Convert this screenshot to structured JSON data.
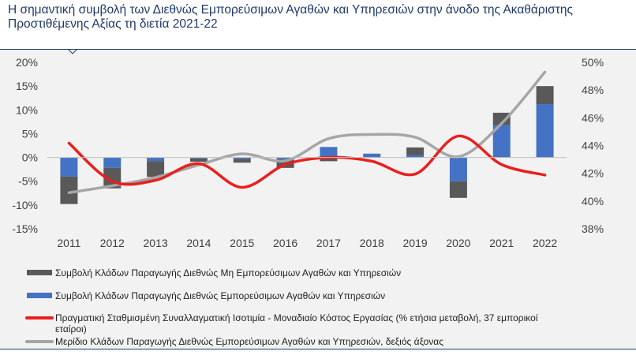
{
  "title": "Η σημαντική συμβολή των Διεθνώς Εμπορεύσιμων Αγαθών και Υπηρεσιών στην άνοδο της Ακαθάριστης Προστιθέμενης Αξίας τη διετία 2021-22",
  "chart_data": {
    "type": "bar",
    "categories": [
      "2011",
      "2012",
      "2013",
      "2014",
      "2015",
      "2016",
      "2017",
      "2018",
      "2019",
      "2020",
      "2021",
      "2022"
    ],
    "left_axis": {
      "ylim": [
        -15,
        20
      ],
      "ticks": [
        -15,
        -10,
        -5,
        0,
        5,
        10,
        15,
        20
      ],
      "tick_labels": [
        "-15%",
        "-10%",
        "-5%",
        "0%",
        "5%",
        "10%",
        "15%",
        "20%"
      ]
    },
    "right_axis": {
      "ylim": [
        38,
        50
      ],
      "ticks": [
        38,
        40,
        42,
        44,
        46,
        48,
        50
      ],
      "tick_labels": [
        "38%",
        "40%",
        "42%",
        "44%",
        "46%",
        "48%",
        "50%"
      ]
    },
    "series": [
      {
        "name": "Συμβολή Κλάδων Παραγωγής Διεθνώς Εμπορεύσιμων Αγαθών και Υπηρεσιών",
        "kind": "stacked-bar",
        "axis": "left",
        "color": "#4472c4",
        "values": [
          -4.0,
          -2.2,
          -0.8,
          -0.2,
          -0.3,
          -0.4,
          2.2,
          0.8,
          0.5,
          -5.0,
          6.8,
          11.2
        ]
      },
      {
        "name": "Συμβολή Κλάδων Παραγωγής Διεθνώς Μη Εμπορεύσιμων Αγαθών και Υπηρεσιών",
        "kind": "stacked-bar",
        "axis": "left",
        "color": "#595959",
        "values": [
          -5.8,
          -4.3,
          -3.3,
          -0.7,
          -0.8,
          -1.8,
          -0.8,
          0.0,
          1.6,
          -3.5,
          2.6,
          3.8
        ]
      },
      {
        "name": "Πραγματική Σταθμισμένη Συναλλαγματική Ισοτιμία - Μοναδιαίο Κόστος Εργασίας (% ετήσια μεταβολή, 37 εμπορικοί εταίροι)",
        "kind": "line",
        "axis": "left",
        "color": "#e8201e",
        "values": [
          3.0,
          -5.0,
          -4.8,
          -1.3,
          -6.3,
          -1.5,
          0.0,
          -0.8,
          -3.5,
          4.5,
          -1.5,
          -3.7
        ]
      },
      {
        "name": "Μερίδιο Κλάδων Παραγωγής Διεθνώς Εμπορεύσιμων Αγαθών και Υπηρεσιών, δεξιός άξονας",
        "kind": "line",
        "axis": "right",
        "color": "#a6a6a6",
        "values": [
          40.6,
          41.1,
          41.7,
          42.6,
          43.4,
          42.9,
          44.5,
          44.8,
          44.6,
          43.2,
          45.6,
          49.3
        ]
      }
    ],
    "legend": {
      "position": "bottom",
      "items": [
        {
          "label": "Συμβολή Κλάδων Παραγωγής Διεθνώς Μη Εμπορεύσιμων Αγαθών και Υπηρεσιών",
          "color": "#595959",
          "kind": "bar"
        },
        {
          "label": "Συμβολή Κλάδων Παραγωγής Διεθνώς Εμπορεύσιμων Αγαθών και Υπηρεσιών",
          "color": "#4472c4",
          "kind": "bar"
        },
        {
          "label_line1": "Πραγματική Σταθμισμένη Συναλλαγματική Ισοτιμία - Μοναδιαίο Κόστος Εργασίας (% ετήσια μεταβολή, 37 εμπορικοί",
          "label_line2": "εταίροι)",
          "color": "#e8201e",
          "kind": "line"
        },
        {
          "label": "Μερίδιο Κλάδων Παραγωγής Διεθνώς Εμπορεύσιμων Αγαθών και Υπηρεσιών, δεξιός άξονας",
          "color": "#a6a6a6",
          "kind": "line"
        }
      ]
    },
    "grid": false
  }
}
